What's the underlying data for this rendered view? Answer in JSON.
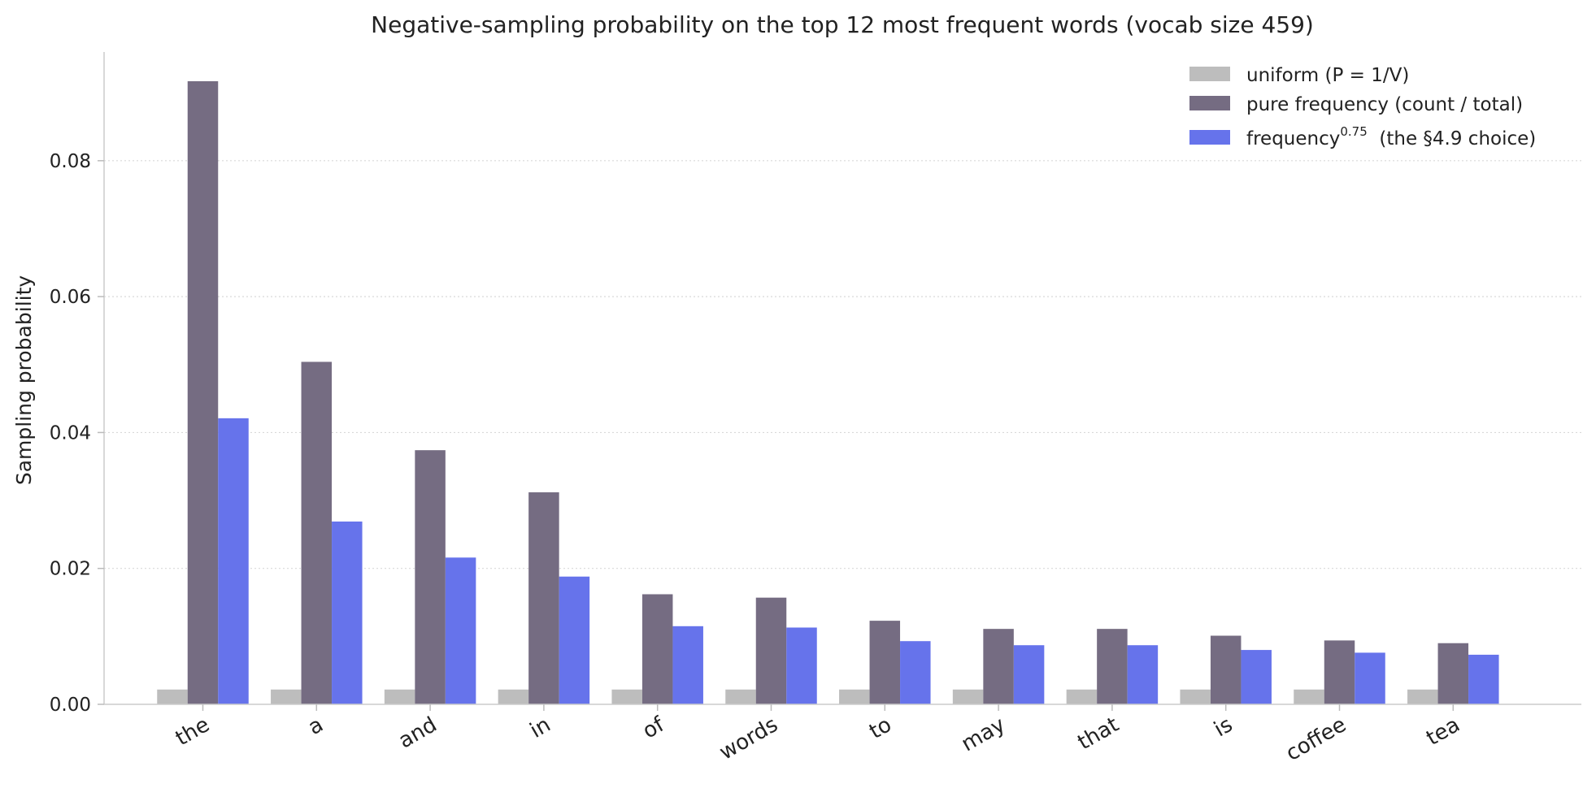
{
  "chart_data": {
    "type": "bar",
    "title": "Negative-sampling probability on the top 12 most frequent words (vocab size 459)",
    "xlabel": "",
    "ylabel": "Sampling probability",
    "ylim": [
      0,
      0.096
    ],
    "yticks": [
      "0.00",
      "0.02",
      "0.04",
      "0.06",
      "0.08"
    ],
    "ytick_values": [
      0,
      0.02,
      0.04,
      0.06,
      0.08
    ],
    "grid": "horizontal dotted",
    "legend_position": "top-right",
    "categories": [
      "the",
      "a",
      "and",
      "in",
      "of",
      "words",
      "to",
      "may",
      "that",
      "is",
      "coffee",
      "tea"
    ],
    "series": [
      {
        "name": "uniform  (P = 1/V)",
        "color": "#bdbdbd",
        "values": [
          0.00218,
          0.00218,
          0.00218,
          0.00218,
          0.00218,
          0.00218,
          0.00218,
          0.00218,
          0.00218,
          0.00218,
          0.00218,
          0.00218
        ]
      },
      {
        "name": "pure frequency  (count / total)",
        "color": "#756c82",
        "values": [
          0.0917,
          0.0504,
          0.0374,
          0.0312,
          0.0162,
          0.0157,
          0.0123,
          0.0111,
          0.0111,
          0.0101,
          0.0094,
          0.009
        ]
      },
      {
        "name_base": "frequency",
        "name_sup": "0.75",
        "name_rest": "  (the §4.9 choice)",
        "color": "#6673eb",
        "values": [
          0.0421,
          0.0269,
          0.0216,
          0.0188,
          0.0115,
          0.0113,
          0.0093,
          0.0087,
          0.0087,
          0.008,
          0.0076,
          0.0073
        ]
      }
    ]
  }
}
